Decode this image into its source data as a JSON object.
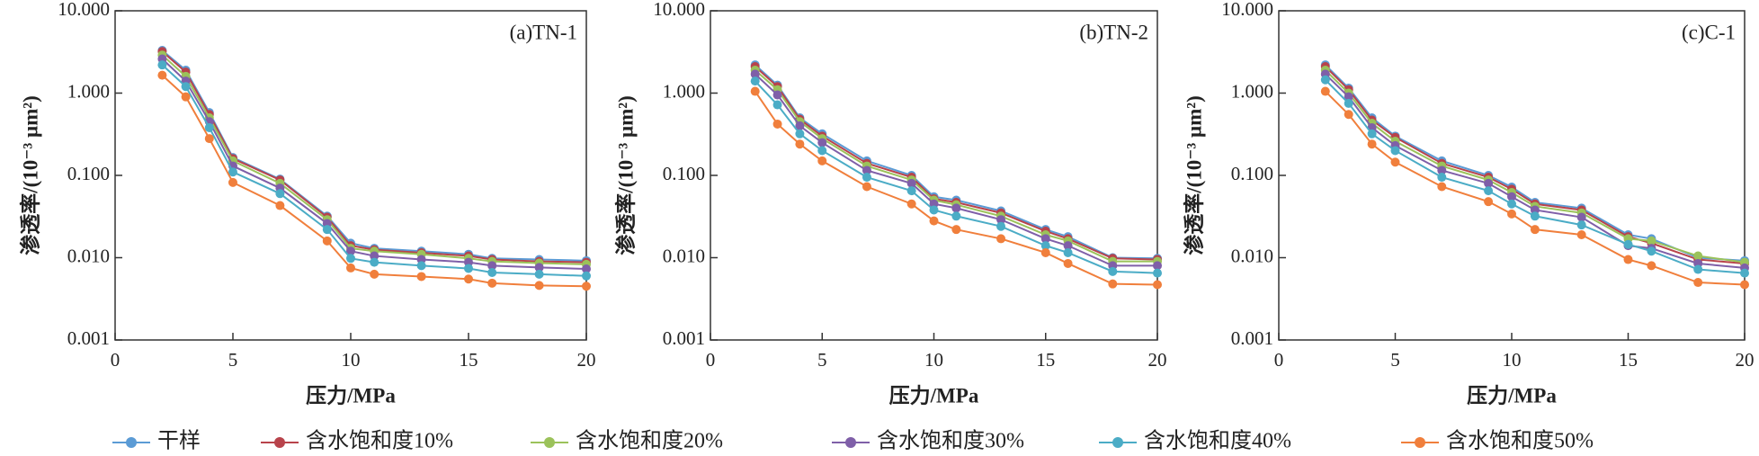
{
  "chart_data": [
    {
      "type": "line",
      "title": "(a)TN-1",
      "xlabel": "压力/MPa",
      "ylabel": "渗透率/(10⁻³ μm²)",
      "log_scale": true,
      "xlim": [
        0,
        20
      ],
      "xticks": [
        0,
        5,
        10,
        15,
        20
      ],
      "ylim": [
        0.001,
        10
      ],
      "yticks": [
        0.001,
        {
          "value": 0.01,
          "label": "0.010"
        },
        {
          "value": 0.1,
          "label": "0.100"
        },
        {
          "value": 1,
          "label": "1.000"
        },
        {
          "value": 10,
          "label": "10.000"
        }
      ],
      "x": [
        2,
        3,
        4,
        5,
        7,
        9,
        10,
        11,
        13,
        15,
        16,
        18,
        20
      ],
      "series": [
        {
          "name": "干样",
          "color": "#5b9bd5",
          "values": [
            3.3,
            1.9,
            0.58,
            0.165,
            0.09,
            0.032,
            0.015,
            0.013,
            0.012,
            0.011,
            0.0098,
            0.0095,
            0.0092
          ]
        },
        {
          "name": "含水饱和度10%",
          "color": "#b8434b",
          "values": [
            3.2,
            1.8,
            0.55,
            0.16,
            0.088,
            0.031,
            0.014,
            0.0125,
            0.0115,
            0.0105,
            0.0095,
            0.009,
            0.0088
          ]
        },
        {
          "name": "含水饱和度20%",
          "color": "#9bc25a",
          "values": [
            2.9,
            1.6,
            0.5,
            0.15,
            0.08,
            0.029,
            0.013,
            0.012,
            0.011,
            0.0098,
            0.009,
            0.0086,
            0.0083
          ]
        },
        {
          "name": "含水饱和度30%",
          "color": "#7f5fa8",
          "values": [
            2.6,
            1.4,
            0.45,
            0.13,
            0.07,
            0.026,
            0.012,
            0.0105,
            0.0095,
            0.0088,
            0.008,
            0.0076,
            0.0073
          ]
        },
        {
          "name": "含水饱和度40%",
          "color": "#4bacc6",
          "values": [
            2.2,
            1.2,
            0.38,
            0.11,
            0.06,
            0.022,
            0.0098,
            0.0088,
            0.008,
            0.0074,
            0.0066,
            0.0063,
            0.006
          ]
        },
        {
          "name": "含水饱和度50%",
          "color": "#f07f3c",
          "values": [
            1.65,
            0.9,
            0.28,
            0.082,
            0.043,
            0.016,
            0.0075,
            0.0063,
            0.0059,
            0.0055,
            0.0049,
            0.0046,
            0.0045
          ]
        }
      ]
    },
    {
      "type": "line",
      "title": "(b)TN-2",
      "xlabel": "压力/MPa",
      "ylabel": "渗透率/(10⁻³ μm²)",
      "log_scale": true,
      "xlim": [
        0,
        20
      ],
      "xticks": [
        0,
        5,
        10,
        15,
        20
      ],
      "ylim": [
        0.001,
        10
      ],
      "yticks": [
        0.001,
        {
          "value": 0.01,
          "label": "0.010"
        },
        {
          "value": 0.1,
          "label": "0.100"
        },
        {
          "value": 1,
          "label": "1.000"
        },
        {
          "value": 10,
          "label": "10.000"
        }
      ],
      "x": [
        2,
        3,
        4,
        5,
        7,
        9,
        10,
        11,
        13,
        15,
        16,
        18,
        20
      ],
      "series": [
        {
          "color": "#5b9bd5",
          "values": [
            2.2,
            1.25,
            0.5,
            0.32,
            0.15,
            0.1,
            0.055,
            0.05,
            0.037,
            0.022,
            0.018,
            0.01,
            0.0098
          ]
        },
        {
          "color": "#b8434b",
          "values": [
            2.1,
            1.2,
            0.48,
            0.3,
            0.14,
            0.095,
            0.052,
            0.047,
            0.035,
            0.021,
            0.017,
            0.0098,
            0.0095
          ]
        },
        {
          "color": "#9bc25a",
          "values": [
            1.9,
            1.1,
            0.45,
            0.28,
            0.13,
            0.088,
            0.05,
            0.044,
            0.032,
            0.019,
            0.016,
            0.009,
            0.009
          ]
        },
        {
          "color": "#7f5fa8",
          "values": [
            1.7,
            0.95,
            0.4,
            0.25,
            0.115,
            0.08,
            0.045,
            0.04,
            0.029,
            0.017,
            0.014,
            0.008,
            0.008
          ]
        },
        {
          "color": "#4bacc6",
          "values": [
            1.4,
            0.72,
            0.32,
            0.2,
            0.095,
            0.065,
            0.038,
            0.032,
            0.024,
            0.014,
            0.0115,
            0.0068,
            0.0065
          ]
        },
        {
          "color": "#f07f3c",
          "values": [
            1.05,
            0.42,
            0.24,
            0.15,
            0.073,
            0.045,
            0.028,
            0.022,
            0.017,
            0.0115,
            0.0085,
            0.0048,
            0.0047
          ]
        }
      ]
    },
    {
      "type": "line",
      "title": "(c)C-1",
      "xlabel": "压力/MPa",
      "ylabel": "渗透率/(10⁻³ μm²)",
      "log_scale": true,
      "xlim": [
        0,
        20
      ],
      "xticks": [
        0,
        5,
        10,
        15,
        20
      ],
      "ylim": [
        0.001,
        10
      ],
      "yticks": [
        0.001,
        {
          "value": 0.01,
          "label": "0.010"
        },
        {
          "value": 0.1,
          "label": "0.100"
        },
        {
          "value": 1,
          "label": "1.000"
        },
        {
          "value": 10,
          "label": "10.000"
        }
      ],
      "x": [
        2,
        3,
        4,
        5,
        7,
        9,
        10,
        11,
        13,
        15,
        16,
        18,
        20
      ],
      "series": [
        {
          "color": "#5b9bd5",
          "values": [
            2.2,
            1.15,
            0.5,
            0.3,
            0.15,
            0.1,
            0.072,
            0.047,
            0.04,
            0.019,
            0.017,
            0.01,
            0.0092
          ]
        },
        {
          "color": "#b8434b",
          "values": [
            2.1,
            1.1,
            0.47,
            0.29,
            0.14,
            0.095,
            0.068,
            0.045,
            0.038,
            0.018,
            0.015,
            0.0095,
            0.0085
          ]
        },
        {
          "color": "#9bc25a",
          "values": [
            1.9,
            1.0,
            0.43,
            0.26,
            0.13,
            0.088,
            0.062,
            0.042,
            0.035,
            0.017,
            0.016,
            0.0105,
            0.0088
          ]
        },
        {
          "color": "#7f5fa8",
          "values": [
            1.7,
            0.9,
            0.38,
            0.23,
            0.115,
            0.08,
            0.055,
            0.038,
            0.031,
            0.014,
            0.013,
            0.0085,
            0.0075
          ]
        },
        {
          "color": "#4bacc6",
          "values": [
            1.45,
            0.75,
            0.32,
            0.2,
            0.095,
            0.065,
            0.045,
            0.032,
            0.025,
            0.0145,
            0.012,
            0.0072,
            0.0065
          ]
        },
        {
          "color": "#f07f3c",
          "values": [
            1.05,
            0.55,
            0.24,
            0.145,
            0.073,
            0.048,
            0.034,
            0.022,
            0.019,
            0.0095,
            0.008,
            0.005,
            0.0047
          ]
        }
      ]
    }
  ]
}
